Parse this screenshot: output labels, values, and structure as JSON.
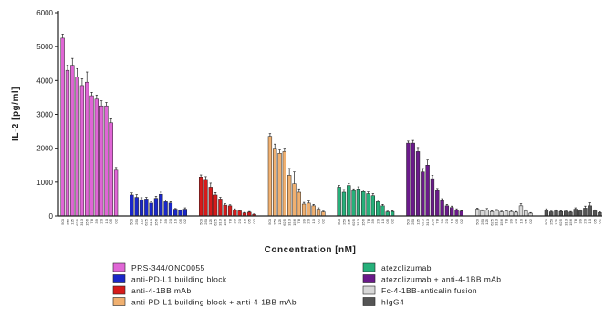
{
  "chart_data": {
    "type": "bar",
    "xlabel": "Concentration [nM]",
    "ylabel": "IL-2 [pg/ml]",
    "ylim": [
      0,
      6000
    ],
    "yticks": [
      0,
      1000,
      2000,
      3000,
      4000,
      5000,
      6000
    ],
    "concentrations": [
      "500",
      "250",
      "125",
      "62.5",
      "31.3",
      "15.6",
      "7.8",
      "3.9",
      "2.0",
      "1.0",
      "0.5",
      "0.2"
    ],
    "legend_placement": "bottom",
    "series": [
      {
        "name": "PRS-344/ONC0055",
        "color": "#e066d6",
        "values": [
          5250,
          4300,
          4450,
          4100,
          3850,
          3950,
          3550,
          3450,
          3250,
          3250,
          2750,
          1350
        ],
        "errors": [
          120,
          150,
          200,
          250,
          200,
          300,
          100,
          120,
          150,
          100,
          120,
          80
        ]
      },
      {
        "name": "anti-PD-L1 building block",
        "color": "#1a27c9",
        "values": [
          620,
          550,
          480,
          500,
          380,
          520,
          640,
          420,
          380,
          200,
          160,
          200
        ],
        "errors": [
          60,
          80,
          60,
          50,
          40,
          60,
          60,
          50,
          40,
          20,
          20,
          40
        ]
      },
      {
        "name": "anti-4-1BB mAb",
        "color": "#d61a1a",
        "values": [
          1150,
          1080,
          850,
          620,
          500,
          320,
          300,
          180,
          150,
          90,
          110,
          50
        ],
        "errors": [
          60,
          80,
          120,
          70,
          50,
          40,
          30,
          30,
          20,
          15,
          20,
          10
        ]
      },
      {
        "name": "anti-PD-L1 building block + anti-4-1BB mAb",
        "color": "#f0b070",
        "values": [
          2350,
          2000,
          1850,
          1900,
          1200,
          950,
          700,
          350,
          380,
          300,
          200,
          120
        ],
        "errors": [
          80,
          120,
          100,
          100,
          200,
          350,
          100,
          50,
          60,
          40,
          40,
          20
        ]
      },
      {
        "name": "atezolizumab",
        "color": "#26b07a",
        "values": [
          850,
          700,
          900,
          750,
          800,
          720,
          660,
          600,
          420,
          300,
          120,
          130
        ],
        "errors": [
          50,
          80,
          60,
          50,
          60,
          50,
          50,
          60,
          50,
          40,
          20,
          20
        ]
      },
      {
        "name": "atezolizumab + anti-4-1BB mAb",
        "color": "#6a1a8a",
        "values": [
          2150,
          2150,
          1900,
          1300,
          1500,
          1100,
          750,
          450,
          300,
          250,
          180,
          140
        ],
        "errors": [
          60,
          80,
          120,
          100,
          150,
          100,
          60,
          60,
          40,
          40,
          30,
          20
        ]
      },
      {
        "name": "Fc-4-1BB-anticalin fusion",
        "color": "#d8d8d8",
        "values": [
          200,
          150,
          180,
          130,
          160,
          120,
          140,
          130,
          110,
          300,
          150,
          80
        ],
        "errors": [
          30,
          30,
          40,
          20,
          30,
          20,
          30,
          30,
          20,
          60,
          30,
          20
        ]
      },
      {
        "name": "hIgG4",
        "color": "#555555",
        "values": [
          180,
          120,
          150,
          130,
          140,
          110,
          200,
          150,
          230,
          300,
          150,
          100
        ],
        "errors": [
          30,
          20,
          30,
          20,
          30,
          20,
          40,
          30,
          60,
          90,
          30,
          20
        ]
      }
    ]
  }
}
